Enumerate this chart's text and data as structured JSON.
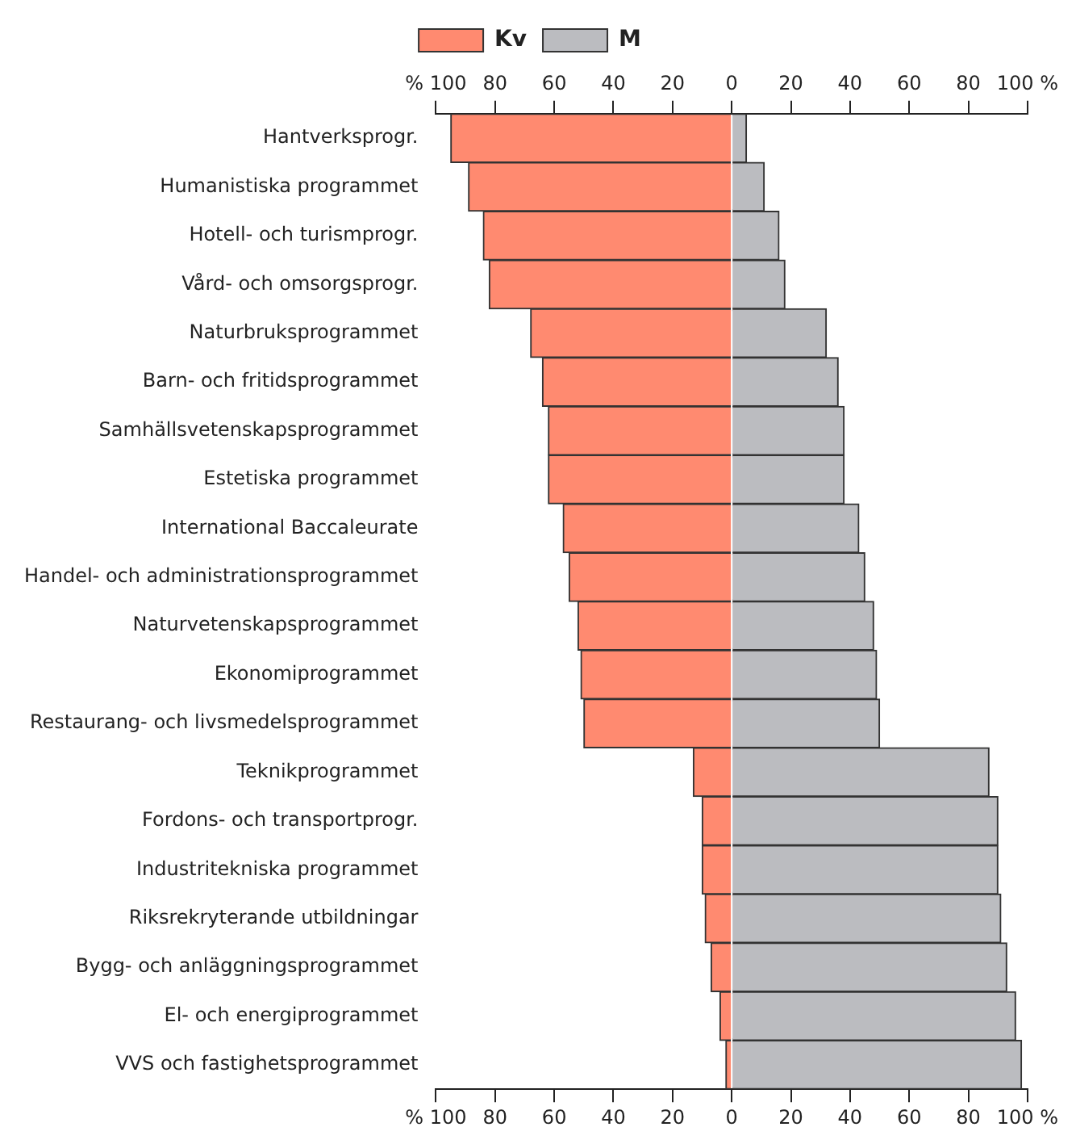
{
  "chart_data": {
    "type": "bar",
    "orientation": "horizontal",
    "stacked": true,
    "categories": [
      "Hantverksprogr.",
      "Humanistiska programmet",
      "Hotell- och turismprogr.",
      "Vård- och omsorgsprogr.",
      "Naturbruksprogrammet",
      "Barn- och fritidsprogrammet",
      "Samhällsvetenskapsprogrammet",
      "Estetiska programmet",
      "International Baccaleurate",
      "Handel- och administrationsprogrammet",
      "Naturvetenskapsprogrammet",
      "Ekonomiprogrammet",
      "Restaurang- och livsmedelsprogrammet",
      "Teknikprogrammet",
      "Fordons- och transportprogr.",
      "Industritekniska programmet",
      "Riksrekryterande utbildningar",
      "Bygg- och anläggningsprogrammet",
      "El- och energiprogrammet",
      "VVS och fastighetsprogrammet"
    ],
    "series": [
      {
        "name": "Kv",
        "color": "#ff8a70",
        "values": [
          -95,
          -89,
          -84,
          -82,
          -68,
          -64,
          -62,
          -62,
          -57,
          -55,
          -52,
          -51,
          -50,
          -13,
          -10,
          -10,
          -9,
          -7,
          -4,
          -2
        ]
      },
      {
        "name": "M",
        "color": "#bbbcc0",
        "values": [
          5,
          11,
          16,
          18,
          32,
          36,
          38,
          38,
          43,
          45,
          48,
          49,
          50,
          87,
          90,
          90,
          91,
          93,
          96,
          98
        ]
      }
    ],
    "xlim": [
      -100,
      100
    ],
    "xticks": [
      {
        "value": -100,
        "label": "% 100"
      },
      {
        "value": -80,
        "label": "80"
      },
      {
        "value": -60,
        "label": "60"
      },
      {
        "value": -40,
        "label": "40"
      },
      {
        "value": -20,
        "label": "20"
      },
      0,
      20,
      40,
      60,
      80,
      {
        "value": 100,
        "label": "100 %"
      }
    ],
    "x2lim": [
      -100,
      100
    ],
    "x2ticks": [
      {
        "value": -100,
        "label": "% 100"
      },
      {
        "value": -80,
        "label": "80"
      },
      {
        "value": -60,
        "label": "60"
      },
      {
        "value": -40,
        "label": "40"
      },
      {
        "value": -20,
        "label": "20"
      },
      0,
      20,
      40,
      60,
      80,
      {
        "value": 100,
        "label": "100 %"
      }
    ],
    "grid": false,
    "legend": "top"
  }
}
